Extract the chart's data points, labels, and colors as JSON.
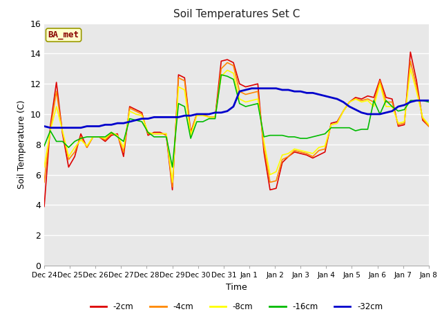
{
  "title": "Soil Temperatures Set C",
  "xlabel": "Time",
  "ylabel": "Soil Temperature (C)",
  "ylim": [
    0,
    16
  ],
  "yticks": [
    0,
    2,
    4,
    6,
    8,
    10,
    12,
    14,
    16
  ],
  "fig_bg_color": "#ffffff",
  "plot_bg_color": "#e8e8e8",
  "annotation_text": "BA_met",
  "annotation_bg": "#ffffcc",
  "annotation_border": "#999900",
  "annotation_text_color": "#880000",
  "x_tick_labels": [
    "Dec 24",
    "Dec 25",
    "Dec 26",
    "Dec 27",
    "Dec 28",
    "Dec 29",
    "Dec 30",
    "Dec 31",
    "Jan 1",
    "Jan 2",
    "Jan 3",
    "Jan 4",
    "Jan 5",
    "Jan 6",
    "Jan 7",
    "Jan 8"
  ],
  "series": {
    "-2cm": {
      "color": "#dd0000",
      "linewidth": 1.2,
      "data": [
        3.9,
        9.2,
        12.1,
        8.7,
        6.5,
        7.2,
        8.7,
        7.8,
        8.5,
        8.5,
        8.2,
        8.6,
        8.7,
        7.2,
        10.5,
        10.3,
        10.1,
        8.6,
        8.8,
        8.8,
        8.6,
        5.0,
        12.6,
        12.4,
        8.8,
        10.0,
        10.0,
        9.8,
        9.8,
        13.5,
        13.6,
        13.4,
        12.0,
        11.8,
        11.9,
        12.0,
        7.5,
        5.0,
        5.1,
        6.8,
        7.2,
        7.5,
        7.4,
        7.3,
        7.1,
        7.3,
        7.5,
        9.4,
        9.5,
        10.2,
        10.8,
        11.1,
        11.0,
        11.2,
        11.1,
        12.3,
        11.1,
        11.0,
        9.2,
        9.3,
        14.1,
        12.2,
        9.6,
        9.2
      ]
    },
    "-4cm": {
      "color": "#ff8800",
      "linewidth": 1.2,
      "data": [
        5.5,
        9.0,
        11.5,
        8.8,
        7.0,
        7.5,
        8.5,
        7.8,
        8.5,
        8.5,
        8.3,
        8.7,
        8.6,
        7.5,
        10.4,
        10.2,
        10.0,
        8.7,
        8.7,
        8.7,
        8.7,
        5.2,
        12.4,
        12.2,
        8.7,
        10.0,
        10.0,
        9.8,
        9.8,
        13.0,
        13.4,
        13.2,
        11.5,
        11.3,
        11.4,
        11.5,
        7.8,
        5.5,
        5.6,
        7.0,
        7.2,
        7.6,
        7.5,
        7.4,
        7.2,
        7.6,
        7.7,
        9.3,
        9.4,
        10.2,
        10.8,
        11.0,
        10.9,
        11.0,
        10.8,
        12.2,
        10.8,
        10.8,
        9.3,
        9.4,
        13.5,
        11.8,
        9.7,
        9.2
      ]
    },
    "-8cm": {
      "color": "#ffff00",
      "linewidth": 1.2,
      "data": [
        6.5,
        8.9,
        10.5,
        8.9,
        7.2,
        7.8,
        8.3,
        7.9,
        8.5,
        8.5,
        8.4,
        8.8,
        8.6,
        7.8,
        10.2,
        10.0,
        9.9,
        8.8,
        8.7,
        8.7,
        8.7,
        5.5,
        11.8,
        11.6,
        8.6,
        9.9,
        9.9,
        9.8,
        9.8,
        12.5,
        12.9,
        12.7,
        11.0,
        10.8,
        10.9,
        11.0,
        8.2,
        6.0,
        6.2,
        7.3,
        7.4,
        7.7,
        7.6,
        7.5,
        7.4,
        7.8,
        7.9,
        9.3,
        9.4,
        10.2,
        10.8,
        11.0,
        10.8,
        10.9,
        10.5,
        12.0,
        10.5,
        10.5,
        9.4,
        9.5,
        13.0,
        11.5,
        9.8,
        9.3
      ]
    },
    "-16cm": {
      "color": "#00bb00",
      "linewidth": 1.2,
      "data": [
        7.9,
        8.9,
        8.2,
        8.2,
        7.8,
        8.2,
        8.4,
        8.5,
        8.5,
        8.5,
        8.5,
        8.8,
        8.5,
        8.2,
        9.7,
        9.6,
        9.5,
        8.8,
        8.5,
        8.5,
        8.5,
        6.5,
        10.7,
        10.5,
        8.4,
        9.5,
        9.5,
        9.7,
        9.7,
        12.6,
        12.5,
        12.3,
        10.7,
        10.5,
        10.6,
        10.7,
        8.5,
        8.6,
        8.6,
        8.6,
        8.5,
        8.5,
        8.4,
        8.4,
        8.5,
        8.6,
        8.7,
        9.1,
        9.1,
        9.1,
        9.1,
        8.9,
        9.0,
        9.0,
        10.9,
        10.0,
        10.9,
        10.5,
        10.2,
        10.3,
        10.9,
        10.9,
        10.9,
        10.8
      ]
    },
    "-32cm": {
      "color": "#0000cc",
      "linewidth": 2.0,
      "data": [
        9.2,
        9.1,
        9.1,
        9.1,
        9.1,
        9.1,
        9.1,
        9.2,
        9.2,
        9.2,
        9.3,
        9.3,
        9.4,
        9.4,
        9.5,
        9.6,
        9.7,
        9.7,
        9.8,
        9.8,
        9.8,
        9.8,
        9.8,
        9.9,
        9.9,
        10.0,
        10.0,
        10.0,
        10.1,
        10.1,
        10.2,
        10.5,
        11.5,
        11.6,
        11.7,
        11.7,
        11.7,
        11.7,
        11.7,
        11.6,
        11.6,
        11.5,
        11.5,
        11.4,
        11.4,
        11.3,
        11.2,
        11.1,
        11.0,
        10.8,
        10.5,
        10.3,
        10.1,
        10.0,
        10.0,
        10.0,
        10.1,
        10.2,
        10.5,
        10.6,
        10.8,
        10.9,
        10.9,
        10.9
      ]
    }
  },
  "legend_labels": [
    "-2cm",
    "-4cm",
    "-8cm",
    "-16cm",
    "-32cm"
  ],
  "legend_colors": [
    "#dd0000",
    "#ff8800",
    "#ffff00",
    "#00bb00",
    "#0000cc"
  ]
}
